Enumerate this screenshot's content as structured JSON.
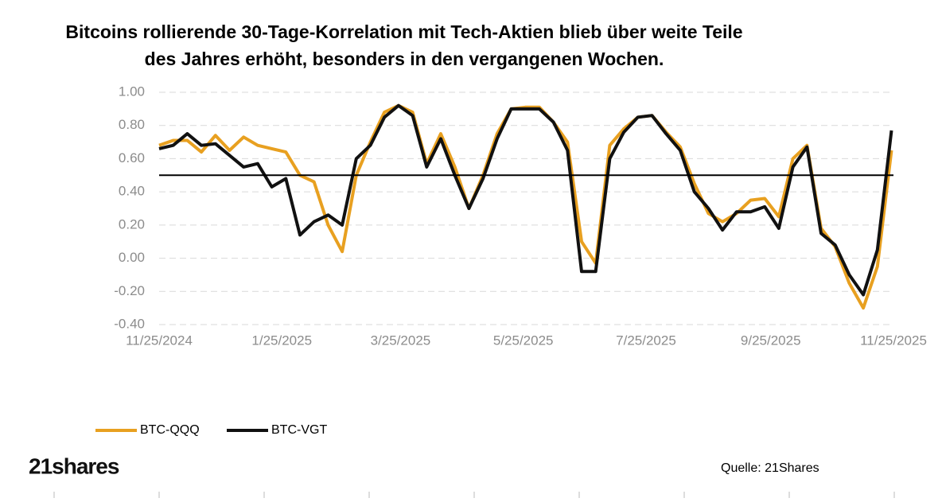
{
  "chart_data": {
    "type": "line",
    "title": [
      "Bitcoins rollierende 30-Tage-Korrelation mit Tech-Aktien blieb über weite Teile",
      "des Jahres erhöht, besonders in den vergangenen Wochen."
    ],
    "x": [
      "2024-11-25",
      "2024-12-02",
      "2024-12-09",
      "2024-12-16",
      "2024-12-23",
      "2024-12-30",
      "2025-01-06",
      "2025-01-13",
      "2025-01-20",
      "2025-01-27",
      "2025-02-03",
      "2025-02-10",
      "2025-02-17",
      "2025-02-24",
      "2025-03-03",
      "2025-03-10",
      "2025-03-17",
      "2025-03-24",
      "2025-03-31",
      "2025-04-07",
      "2025-04-14",
      "2025-04-21",
      "2025-04-28",
      "2025-05-05",
      "2025-05-12",
      "2025-05-19",
      "2025-05-26",
      "2025-06-02",
      "2025-06-09",
      "2025-06-16",
      "2025-06-23",
      "2025-06-30",
      "2025-07-07",
      "2025-07-14",
      "2025-07-21",
      "2025-07-28",
      "2025-08-04",
      "2025-08-11",
      "2025-08-18",
      "2025-08-25",
      "2025-09-01",
      "2025-09-08",
      "2025-09-15",
      "2025-09-22",
      "2025-09-29",
      "2025-10-06",
      "2025-10-13",
      "2025-10-20",
      "2025-10-27",
      "2025-11-03",
      "2025-11-10",
      "2025-11-17",
      "2025-11-24"
    ],
    "series": [
      {
        "name": "BTC-QQQ",
        "color": "#e8a020",
        "values": [
          0.68,
          0.71,
          0.71,
          0.64,
          0.74,
          0.65,
          0.73,
          0.68,
          0.66,
          0.64,
          0.5,
          0.46,
          0.2,
          0.04,
          0.5,
          0.7,
          0.88,
          0.92,
          0.88,
          0.57,
          0.75,
          0.55,
          0.3,
          0.5,
          0.75,
          0.9,
          0.91,
          0.91,
          0.82,
          0.7,
          0.1,
          -0.03,
          0.68,
          0.78,
          0.85,
          0.86,
          0.76,
          0.67,
          0.45,
          0.27,
          0.22,
          0.27,
          0.35,
          0.36,
          0.25,
          0.6,
          0.68,
          0.18,
          0.07,
          -0.15,
          -0.3,
          -0.05,
          0.65
        ]
      },
      {
        "name": "BTC-VGT",
        "color": "#111111",
        "values": [
          0.66,
          0.68,
          0.75,
          0.68,
          0.69,
          0.62,
          0.55,
          0.57,
          0.43,
          0.48,
          0.14,
          0.22,
          0.26,
          0.2,
          0.6,
          0.68,
          0.85,
          0.92,
          0.86,
          0.55,
          0.72,
          0.5,
          0.3,
          0.48,
          0.72,
          0.9,
          0.9,
          0.9,
          0.82,
          0.65,
          -0.08,
          -0.08,
          0.6,
          0.76,
          0.85,
          0.86,
          0.75,
          0.65,
          0.4,
          0.3,
          0.17,
          0.28,
          0.28,
          0.31,
          0.18,
          0.55,
          0.67,
          0.15,
          0.08,
          -0.1,
          -0.22,
          0.05,
          0.77
        ]
      }
    ],
    "reference_line": 0.5,
    "xlim": [
      "2024-11-25",
      "2025-11-25"
    ],
    "xticks": [
      {
        "value": "2024-11-25",
        "label": "11/25/2024"
      },
      {
        "value": "2025-01-25",
        "label": "1/25/2025"
      },
      {
        "value": "2025-03-25",
        "label": "3/25/2025"
      },
      {
        "value": "2025-05-25",
        "label": "5/25/2025"
      },
      {
        "value": "2025-07-25",
        "label": "7/25/2025"
      },
      {
        "value": "2025-09-25",
        "label": "9/25/2025"
      },
      {
        "value": "2025-11-25",
        "label": "11/25/2025"
      }
    ],
    "ylim": [
      -0.4,
      1.0
    ],
    "yticks": [
      {
        "value": -0.4,
        "label": "-0.40"
      },
      {
        "value": -0.2,
        "label": "-0.20"
      },
      {
        "value": 0,
        "label": "0.00"
      },
      {
        "value": 0.2,
        "label": "0.20"
      },
      {
        "value": 0.4,
        "label": "0.40"
      },
      {
        "value": 0.6,
        "label": "0.60"
      },
      {
        "value": 0.8,
        "label": "0.80"
      },
      {
        "value": 1.0,
        "label": "1.00"
      }
    ],
    "grid": true,
    "logo": "21shares",
    "source": "Quelle:  21Shares"
  }
}
